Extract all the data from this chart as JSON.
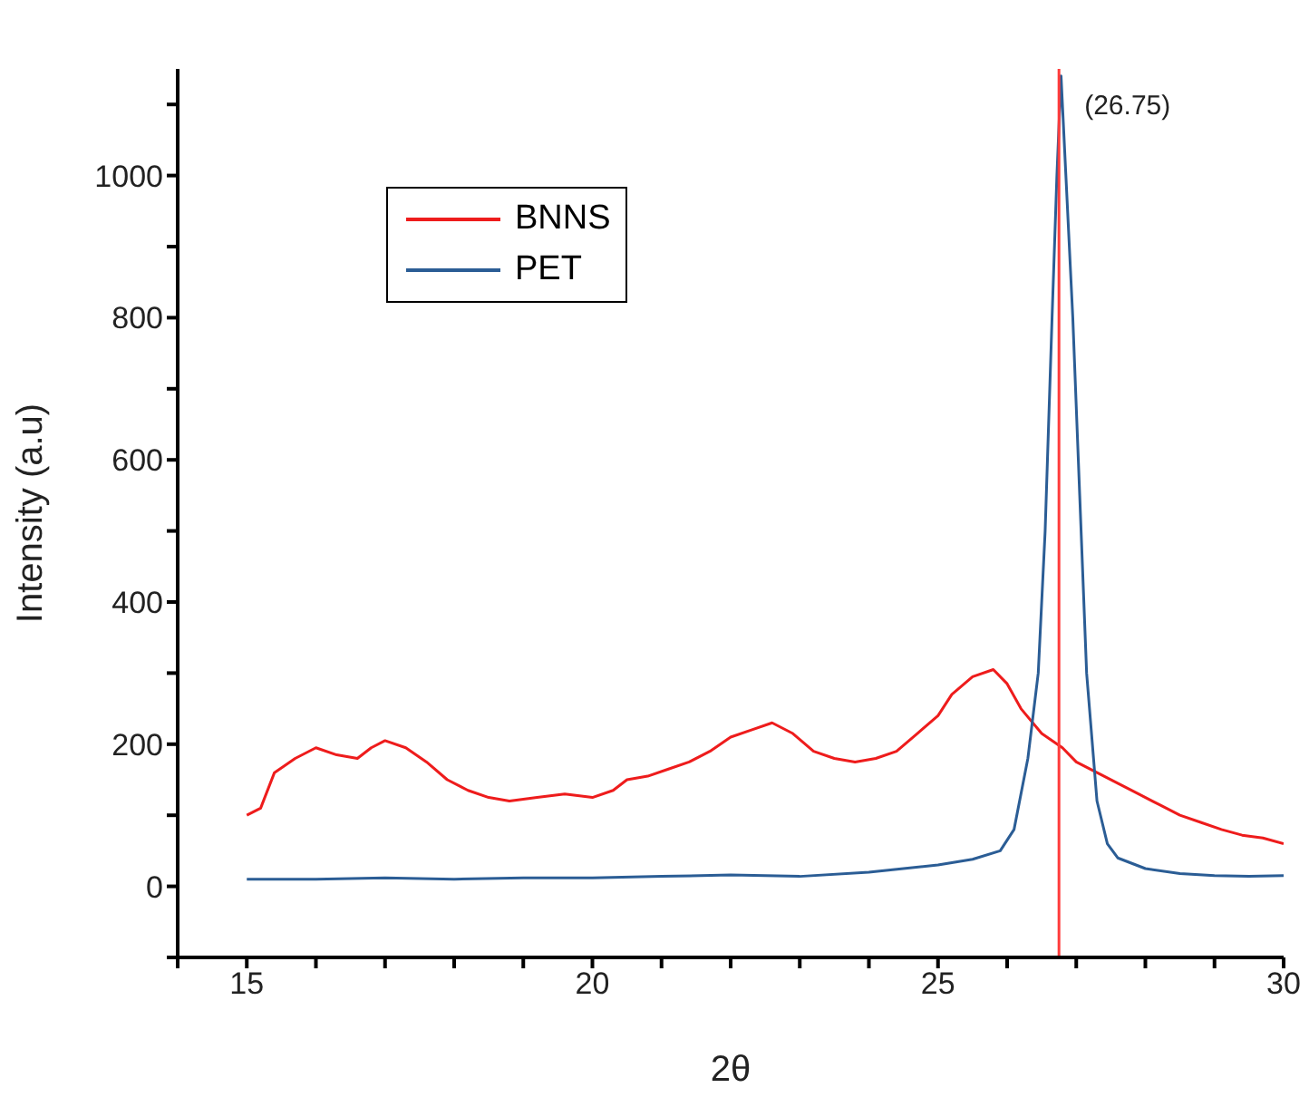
{
  "chart_data": {
    "type": "line",
    "xlabel": "2θ",
    "ylabel": "Intensity (a.u)",
    "xlim": [
      14,
      30
    ],
    "ylim": [
      -100,
      1150
    ],
    "xticks": [
      {
        "value": 14,
        "label": null
      },
      15,
      {
        "value": 16,
        "label": null
      },
      {
        "value": 17,
        "label": null
      },
      {
        "value": 18,
        "label": null
      },
      {
        "value": 19,
        "label": null
      },
      20,
      {
        "value": 21,
        "label": null
      },
      {
        "value": 22,
        "label": null
      },
      {
        "value": 23,
        "label": null
      },
      {
        "value": 24,
        "label": null
      },
      25,
      {
        "value": 26,
        "label": null
      },
      {
        "value": 27,
        "label": null
      },
      {
        "value": 28,
        "label": null
      },
      {
        "value": 29,
        "label": null
      },
      30
    ],
    "yticks": [
      {
        "value": -100,
        "label": null
      },
      0,
      {
        "value": 100,
        "label": null
      },
      200,
      {
        "value": 300,
        "label": null
      },
      400,
      {
        "value": 500,
        "label": null
      },
      600,
      {
        "value": 700,
        "label": null
      },
      800,
      {
        "value": 900,
        "label": null
      },
      1000,
      {
        "value": 1100,
        "label": null
      }
    ],
    "grid": false,
    "legend": "top left",
    "marker": "none",
    "line_style": "solid",
    "series": [
      {
        "name": "BNNS",
        "color": "#ee1c1c",
        "x": [
          15.0,
          15.2,
          15.4,
          15.7,
          16.0,
          16.3,
          16.6,
          16.8,
          17.0,
          17.3,
          17.6,
          17.9,
          18.2,
          18.5,
          18.8,
          19.2,
          19.6,
          20.0,
          20.3,
          20.5,
          20.8,
          21.1,
          21.4,
          21.7,
          22.0,
          22.3,
          22.6,
          22.9,
          23.2,
          23.5,
          23.8,
          24.1,
          24.4,
          24.7,
          25.0,
          25.2,
          25.5,
          25.8,
          26.0,
          26.2,
          26.5,
          26.8,
          27.0,
          27.3,
          27.6,
          27.9,
          28.2,
          28.5,
          28.8,
          29.1,
          29.4,
          29.7,
          30.0
        ],
        "values": [
          100,
          110,
          160,
          180,
          195,
          185,
          180,
          195,
          205,
          195,
          175,
          150,
          135,
          125,
          120,
          125,
          130,
          125,
          135,
          150,
          155,
          165,
          175,
          190,
          210,
          220,
          230,
          215,
          190,
          180,
          175,
          180,
          190,
          215,
          240,
          270,
          295,
          305,
          285,
          250,
          215,
          195,
          175,
          160,
          145,
          130,
          115,
          100,
          90,
          80,
          72,
          68,
          60
        ]
      },
      {
        "name": "PET",
        "color": "#2b5d95",
        "x": [
          15,
          16,
          17,
          18,
          19,
          20,
          21,
          22,
          23,
          24,
          24.5,
          25,
          25.5,
          25.9,
          26.1,
          26.3,
          26.45,
          26.55,
          26.65,
          26.72,
          26.78,
          26.85,
          26.95,
          27.05,
          27.15,
          27.3,
          27.45,
          27.6,
          28,
          28.5,
          29,
          29.5,
          30
        ],
        "values": [
          10,
          10,
          12,
          10,
          12,
          12,
          14,
          16,
          14,
          20,
          25,
          30,
          38,
          50,
          80,
          180,
          300,
          500,
          800,
          1000,
          1140,
          1000,
          800,
          550,
          300,
          120,
          60,
          40,
          25,
          18,
          15,
          14,
          15
        ]
      }
    ],
    "ref_lines": [
      {
        "axis": "x",
        "value": 26.75,
        "color": "#ff3b3b",
        "line_style": "solid"
      }
    ],
    "annotations": [
      {
        "text": "(26.75)",
        "x": 26.75,
        "y": 1100
      }
    ]
  }
}
